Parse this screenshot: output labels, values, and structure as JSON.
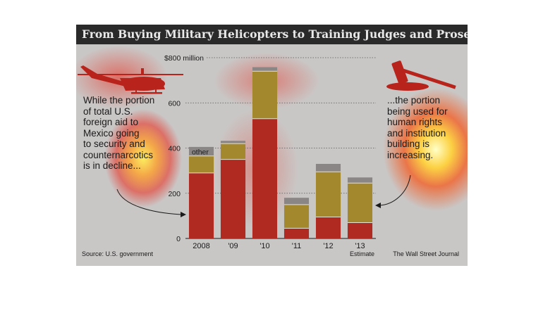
{
  "title": "From Buying Military Helicopters to Training Judges and Prosecutors",
  "left_note": [
    "While the portion",
    "of total U.S.",
    "foreign aid to",
    "Mexico going",
    "to security and",
    "counternarcotics",
    "is in decline..."
  ],
  "right_note": [
    "...the portion",
    "being used for",
    "human rights",
    "and institution",
    "building is",
    "increasing."
  ],
  "source": "Source: U.S. government",
  "credit": "The Wall Street Journal",
  "estimate_label": "Estimate",
  "other_label": "other",
  "icons": [
    "helicopter-icon",
    "gavel-icon"
  ],
  "colors": {
    "security": "#b12a22",
    "institution": "#a3882e",
    "other": "#8a8686",
    "title_bg": "#2a2a2a",
    "background": "#c9c7c6"
  },
  "chart_data": {
    "type": "bar",
    "stacked": true,
    "categories": [
      "2008",
      "'09",
      "'10",
      "'11",
      "'12",
      "'13"
    ],
    "series": [
      {
        "values": [
          290,
          350,
          530,
          45,
          95,
          70
        ]
      },
      {
        "values": [
          75,
          70,
          210,
          105,
          200,
          175
        ]
      },
      {
        "name": "other",
        "values": [
          40,
          12,
          18,
          30,
          35,
          25
        ]
      }
    ],
    "ytick_labels": [
      "0",
      "200",
      "400",
      "600",
      "$800 million"
    ],
    "yticks": [
      0,
      200,
      400,
      600,
      800
    ],
    "ylim": [
      0,
      800
    ],
    "grid": true
  }
}
